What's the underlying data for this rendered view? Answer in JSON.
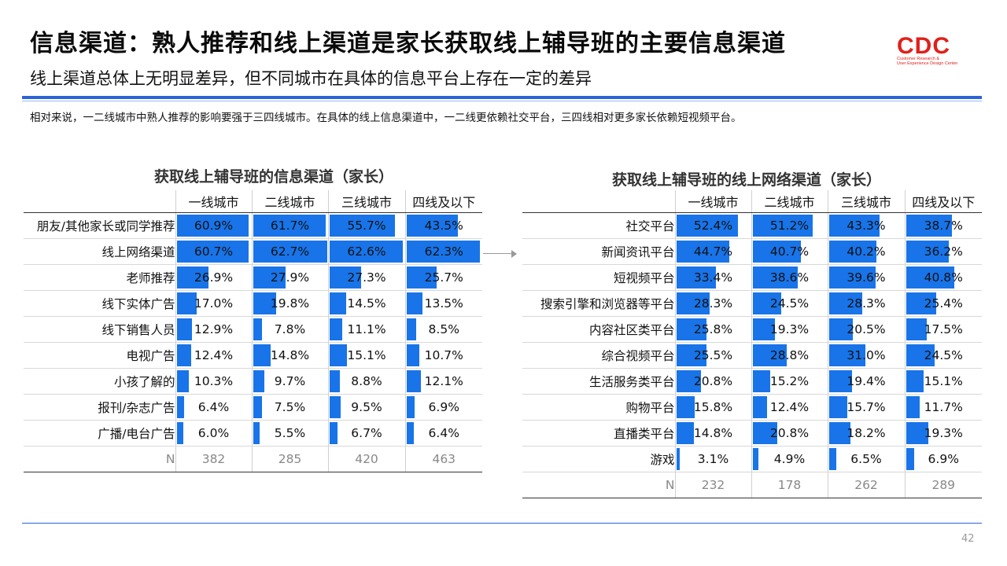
{
  "header": {
    "title": "信息渠道：熟人推荐和线上渠道是家长获取线上辅导班的主要信息渠道",
    "subtitle": "线上渠道总体上无明显差异，但不同城市在具体的信息平台上存在一定的差异",
    "note": "相对来说，一二线城市中熟人推荐的影响要强于三四线城市。在具体的线上信息渠道中，一二线更依赖社交平台，三四线相对更多家长依赖短视频平台。"
  },
  "logo": {
    "mark": "CDC",
    "line1": "Customer Research &",
    "line2": "User Experience Design Center"
  },
  "colors": {
    "bar": "#1874e8",
    "accent_rule": "#2b63d9",
    "logo": "#e0201a"
  },
  "left_table": {
    "title": "获取线上辅导班的信息渠道（家长）",
    "columns": [
      "一线城市",
      "二线城市",
      "三线城市",
      "四线及以下"
    ],
    "rows": [
      {
        "label": "朋友/其他家长或同学推荐",
        "values": [
          "60.9%",
          "61.7%",
          "55.7%",
          "43.5%"
        ]
      },
      {
        "label": "线上网络渠道",
        "values": [
          "60.7%",
          "62.7%",
          "62.6%",
          "62.3%"
        ]
      },
      {
        "label": "老师推荐",
        "values": [
          "26.9%",
          "27.9%",
          "27.3%",
          "25.7%"
        ]
      },
      {
        "label": "线下实体广告",
        "values": [
          "17.0%",
          "19.8%",
          "14.5%",
          "13.5%"
        ]
      },
      {
        "label": "线下销售人员",
        "values": [
          "12.9%",
          "7.8%",
          "11.1%",
          "8.5%"
        ]
      },
      {
        "label": "电视广告",
        "values": [
          "12.4%",
          "14.8%",
          "15.1%",
          "10.7%"
        ]
      },
      {
        "label": "小孩了解的",
        "values": [
          "10.3%",
          "9.7%",
          "8.8%",
          "12.1%"
        ]
      },
      {
        "label": "报刊/杂志广告",
        "values": [
          "6.4%",
          "7.5%",
          "9.5%",
          "6.9%"
        ]
      },
      {
        "label": "广播/电台广告",
        "values": [
          "6.0%",
          "5.5%",
          "6.7%",
          "6.4%"
        ]
      }
    ],
    "n_row": {
      "label": "N",
      "values": [
        "382",
        "285",
        "420",
        "463"
      ]
    }
  },
  "right_table": {
    "title": "获取线上辅导班的线上网络渠道（家长）",
    "columns": [
      "一线城市",
      "二线城市",
      "三线城市",
      "四线及以下"
    ],
    "rows": [
      {
        "label": "社交平台",
        "values": [
          "52.4%",
          "51.2%",
          "43.3%",
          "38.7%"
        ]
      },
      {
        "label": "新闻资讯平台",
        "values": [
          "44.7%",
          "40.7%",
          "40.2%",
          "36.2%"
        ]
      },
      {
        "label": "短视频平台",
        "values": [
          "33.4%",
          "38.6%",
          "39.6%",
          "40.8%"
        ]
      },
      {
        "label": "搜索引擎和浏览器等平台",
        "values": [
          "28.3%",
          "24.5%",
          "28.3%",
          "25.4%"
        ]
      },
      {
        "label": "内容社区类平台",
        "values": [
          "25.8%",
          "19.3%",
          "20.5%",
          "17.5%"
        ]
      },
      {
        "label": "综合视频平台",
        "values": [
          "25.5%",
          "28.8%",
          "31.0%",
          "24.5%"
        ]
      },
      {
        "label": "生活服务类平台",
        "values": [
          "20.8%",
          "15.2%",
          "19.4%",
          "15.1%"
        ]
      },
      {
        "label": "购物平台",
        "values": [
          "15.8%",
          "12.4%",
          "15.7%",
          "11.7%"
        ]
      },
      {
        "label": "直播类平台",
        "values": [
          "14.8%",
          "20.8%",
          "18.2%",
          "19.3%"
        ]
      },
      {
        "label": "游戏",
        "values": [
          "3.1%",
          "4.9%",
          "6.5%",
          "6.9%"
        ]
      }
    ],
    "n_row": {
      "label": "N",
      "values": [
        "232",
        "178",
        "262",
        "289"
      ]
    }
  },
  "page_number": "42"
}
